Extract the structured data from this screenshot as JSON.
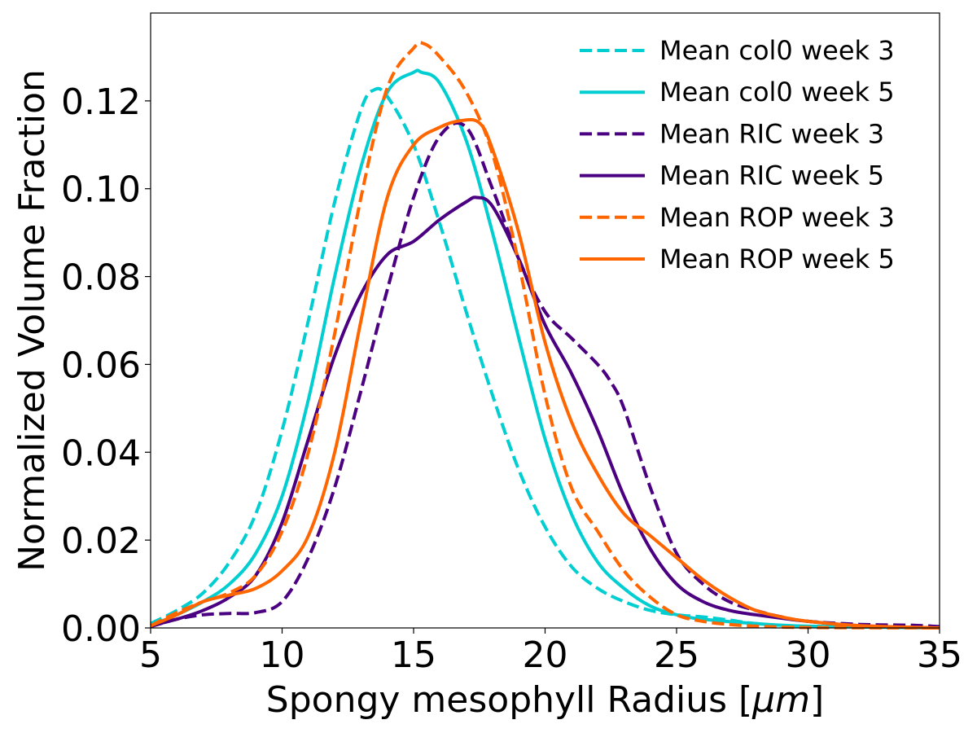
{
  "chart_data": {
    "type": "line",
    "title": "",
    "xlabel": "Spongy mesophyll Radius [",
    "xlabel_unit": "μm",
    "xlabel_end": "]",
    "ylabel": "Normalized Volume Fraction",
    "xlim": [
      5,
      35
    ],
    "ylim": [
      0,
      0.14
    ],
    "grid": false,
    "legend_position": "top-right",
    "x_ticks": [
      5,
      10,
      15,
      20,
      25,
      30,
      35
    ],
    "x_tick_labels": [
      "5",
      "10",
      "15",
      "20",
      "25",
      "30",
      "35"
    ],
    "y_ticks": [
      0,
      0.02,
      0.04,
      0.06,
      0.08,
      0.1,
      0.12
    ],
    "y_tick_labels": [
      "0.00",
      "0.02",
      "0.04",
      "0.06",
      "0.08",
      "0.10",
      "0.12"
    ],
    "series": [
      {
        "name": "Mean col0 week 3",
        "color": "#00ced1",
        "dash": true,
        "x": [
          5,
          6,
          7,
          8,
          9,
          10,
          11,
          12,
          13,
          13.5,
          14,
          15,
          16,
          17,
          18,
          19,
          20,
          21,
          22,
          23,
          24,
          25,
          26,
          27,
          28,
          30,
          35
        ],
        "y": [
          0.001,
          0.004,
          0.008,
          0.015,
          0.026,
          0.045,
          0.07,
          0.097,
          0.118,
          0.1225,
          0.121,
          0.11,
          0.092,
          0.072,
          0.053,
          0.036,
          0.023,
          0.014,
          0.009,
          0.006,
          0.004,
          0.003,
          0.0025,
          0.0018,
          0.001,
          0.0003,
          0.0
        ]
      },
      {
        "name": "Mean col0 week 5",
        "color": "#00ced1",
        "dash": false,
        "x": [
          5,
          6,
          7,
          8,
          9,
          10,
          11,
          12,
          13,
          14,
          15,
          15.3,
          16,
          17,
          18,
          19,
          20,
          21,
          22,
          23,
          24,
          25,
          26,
          28,
          30,
          35
        ],
        "y": [
          0.0005,
          0.003,
          0.006,
          0.01,
          0.017,
          0.03,
          0.052,
          0.08,
          0.105,
          0.122,
          0.1265,
          0.1265,
          0.124,
          0.111,
          0.09,
          0.066,
          0.043,
          0.026,
          0.015,
          0.009,
          0.005,
          0.003,
          0.002,
          0.001,
          0.0004,
          0.0
        ]
      },
      {
        "name": "Mean RIC week 3",
        "color": "#4b0082",
        "dash": true,
        "x": [
          5,
          6,
          7,
          8,
          9,
          10,
          11,
          12,
          13,
          14,
          15,
          16,
          17,
          18,
          19,
          20,
          21,
          22,
          22.5,
          23,
          24,
          25,
          26,
          27,
          28,
          29,
          30,
          32,
          34,
          35
        ],
        "y": [
          0.0003,
          0.002,
          0.003,
          0.0033,
          0.0035,
          0.006,
          0.016,
          0.032,
          0.054,
          0.077,
          0.098,
          0.112,
          0.114,
          0.1,
          0.084,
          0.072,
          0.066,
          0.06,
          0.056,
          0.05,
          0.032,
          0.017,
          0.01,
          0.006,
          0.004,
          0.0025,
          0.0015,
          0.0008,
          0.0006,
          0.0003
        ]
      },
      {
        "name": "Mean RIC week 5",
        "color": "#4b0082",
        "dash": false,
        "x": [
          5,
          6,
          7,
          8,
          9,
          10,
          11,
          12,
          13,
          14,
          15,
          16,
          17,
          17.4,
          18,
          19,
          20,
          21,
          22,
          23,
          24,
          25,
          26,
          27,
          28,
          30,
          32,
          35
        ],
        "y": [
          0.0005,
          0.002,
          0.004,
          0.007,
          0.012,
          0.024,
          0.043,
          0.062,
          0.076,
          0.085,
          0.088,
          0.093,
          0.097,
          0.098,
          0.096,
          0.084,
          0.069,
          0.058,
          0.045,
          0.03,
          0.018,
          0.01,
          0.006,
          0.004,
          0.003,
          0.0015,
          0.0005,
          0.0
        ]
      },
      {
        "name": "Mean ROP week 3",
        "color": "#ff6600",
        "dash": true,
        "x": [
          5,
          6,
          7,
          8,
          9,
          10,
          11,
          12,
          13,
          14,
          15,
          15.4,
          16,
          17,
          18,
          19,
          20,
          21,
          22,
          23,
          24,
          25,
          26,
          27,
          28,
          30,
          35
        ],
        "y": [
          0.0005,
          0.0035,
          0.006,
          0.008,
          0.012,
          0.022,
          0.04,
          0.067,
          0.098,
          0.123,
          0.132,
          0.133,
          0.13,
          0.122,
          0.108,
          0.083,
          0.053,
          0.032,
          0.022,
          0.013,
          0.007,
          0.003,
          0.0015,
          0.0008,
          0.0004,
          0.0001,
          0.0
        ]
      },
      {
        "name": "Mean ROP week 5",
        "color": "#ff6600",
        "dash": false,
        "x": [
          5,
          6,
          7,
          8,
          9,
          10,
          11,
          12,
          13,
          14,
          15,
          16,
          16.8,
          17.5,
          18,
          19,
          20,
          21,
          22,
          23,
          24,
          25,
          26,
          27,
          28,
          29,
          30,
          32,
          35
        ],
        "y": [
          0.0005,
          0.003,
          0.006,
          0.0075,
          0.009,
          0.013,
          0.021,
          0.04,
          0.07,
          0.098,
          0.11,
          0.114,
          0.1155,
          0.115,
          0.109,
          0.09,
          0.065,
          0.047,
          0.035,
          0.026,
          0.021,
          0.016,
          0.011,
          0.007,
          0.004,
          0.0025,
          0.0015,
          0.0005,
          0.0
        ]
      }
    ]
  }
}
